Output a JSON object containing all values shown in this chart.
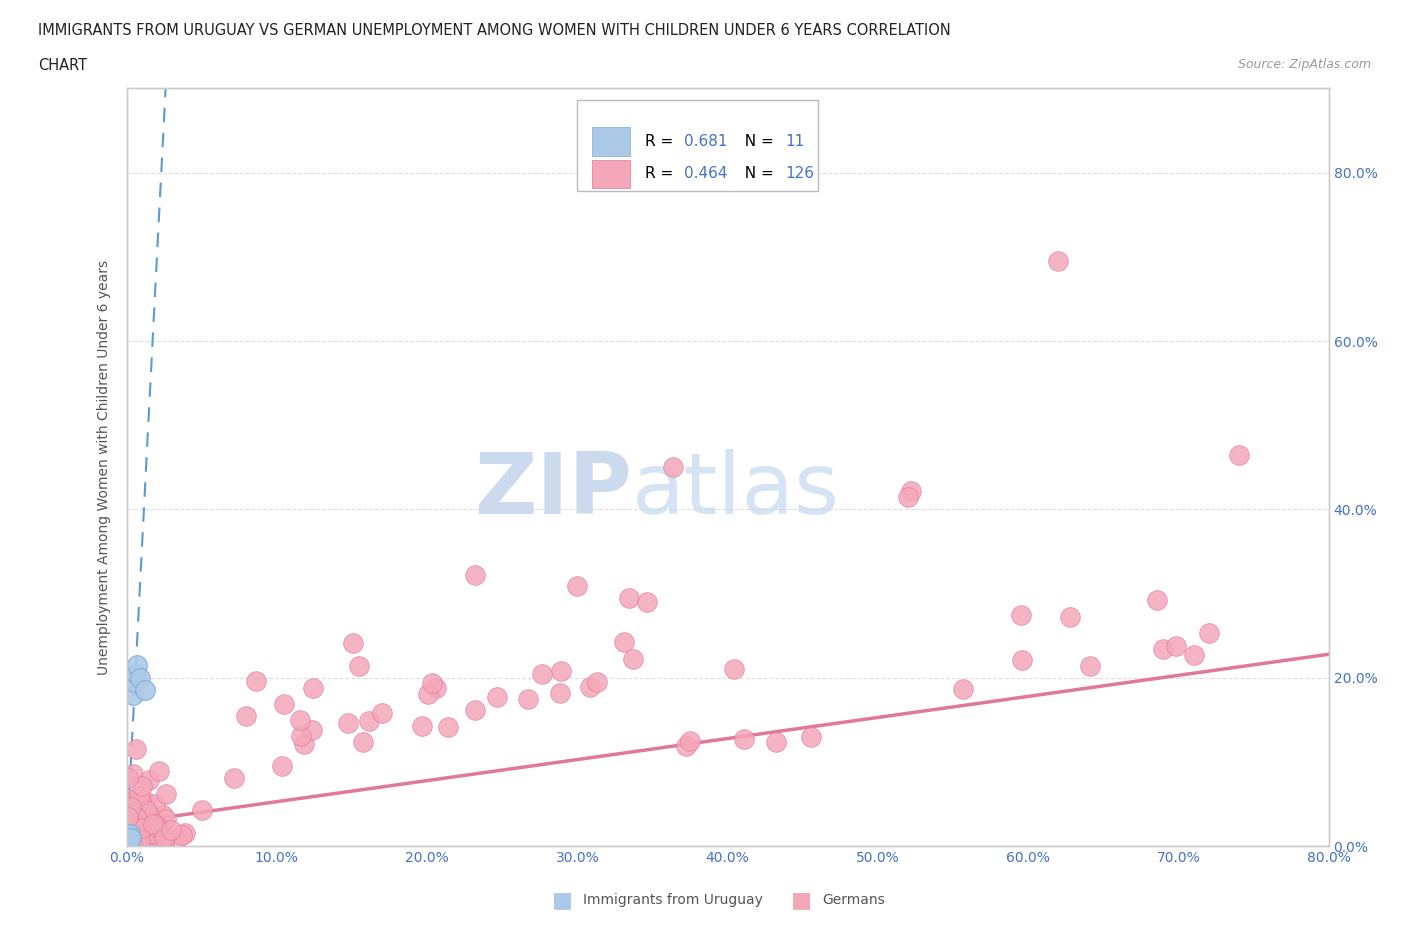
{
  "title_line1": "IMMIGRANTS FROM URUGUAY VS GERMAN UNEMPLOYMENT AMONG WOMEN WITH CHILDREN UNDER 6 YEARS CORRELATION",
  "title_line2": "CHART",
  "source_text": "Source: ZipAtlas.com",
  "ylabel": "Unemployment Among Women with Children Under 6 years",
  "r_uruguay": 0.681,
  "n_uruguay": 11,
  "r_german": 0.464,
  "n_german": 126,
  "xlim": [
    0.0,
    0.8
  ],
  "ylim": [
    0.0,
    0.9
  ],
  "xtick_vals": [
    0.0,
    0.1,
    0.2,
    0.3,
    0.4,
    0.5,
    0.6,
    0.7,
    0.8
  ],
  "ytick_vals": [
    0.0,
    0.2,
    0.4,
    0.6,
    0.8
  ],
  "blue_color": "#adc9e8",
  "blue_edge": "#7aafd4",
  "blue_line_color": "#5b9bd5",
  "pink_color": "#f4a7b9",
  "pink_edge": "#e07899",
  "pink_line_color": "#e07899",
  "bg_color": "#ffffff",
  "grid_color": "#dddddd",
  "axis_color": "#cccccc",
  "title_color": "#222222",
  "label_color": "#555555",
  "tick_color": "#4472c4",
  "source_color": "#999999",
  "watermark_zip_color": "#ccdaee",
  "watermark_atlas_color": "#c5d8f0",
  "legend_border_color": "#bbbbbb",
  "bottom_legend_color": "#555555"
}
